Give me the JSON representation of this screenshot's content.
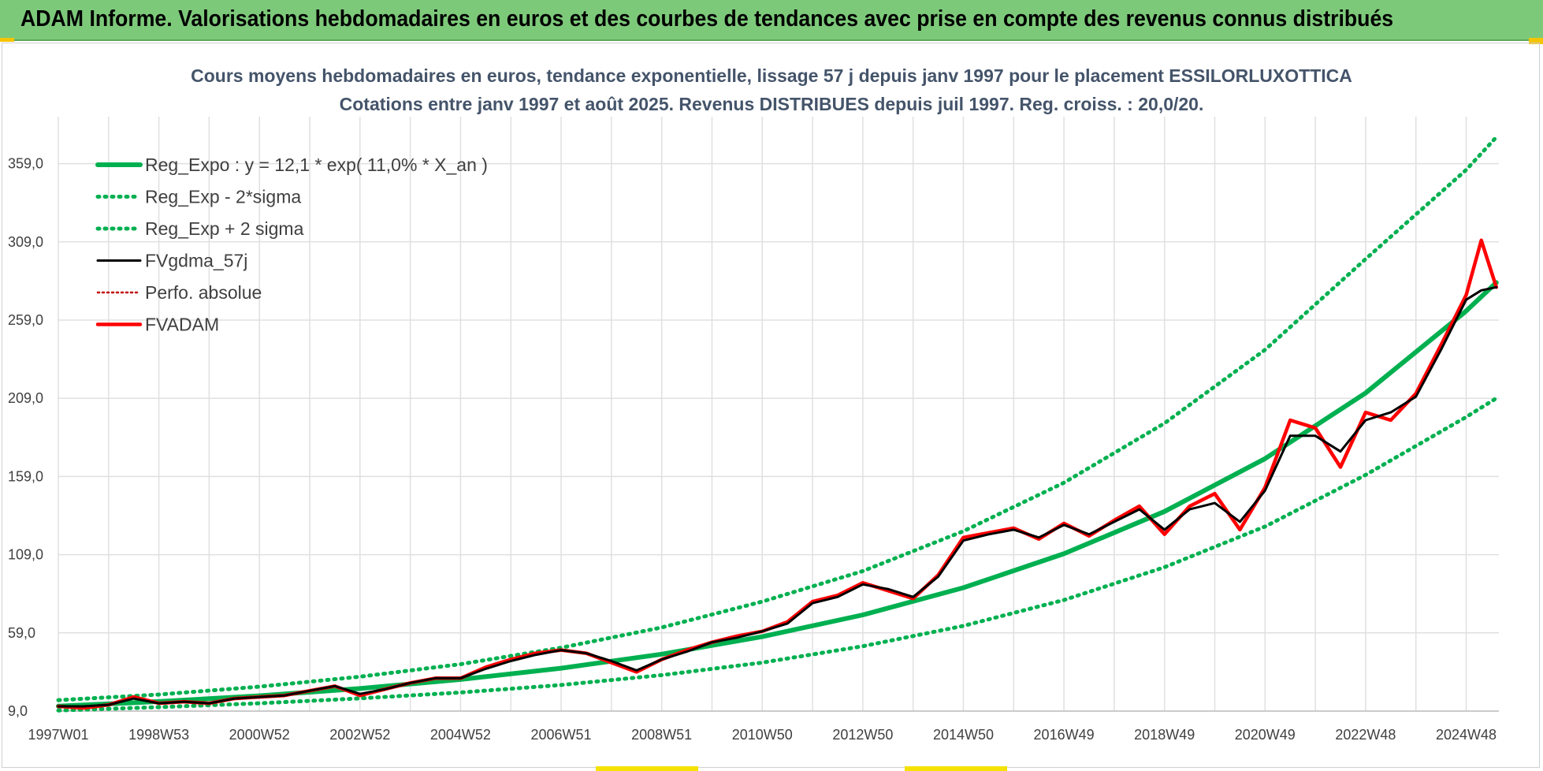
{
  "header": {
    "banner": "ADAM Informe. Valorisations hebdomadaires en euros et des courbes de tendances avec prise en compte des revenus connus distribués"
  },
  "colors": {
    "banner_bg": "#7dc97a",
    "title": "#44546a",
    "reg_green": "#00b050",
    "fvadam_red": "#ff0000",
    "perfo_red": "#c00000",
    "gdma_black": "#000000",
    "grid": "#e0e0e0"
  },
  "chart_data": {
    "type": "line",
    "title": "Cours moyens hebdomadaires en euros, tendance exponentielle, lissage 57 j depuis janv 1997 pour le placement ESSILORLUXOTTICA",
    "subtitle": "Cotations entre janv 1997 et août 2025.  Revenus DISTRIBUES depuis juil 1997.  Reg. croiss. : 20,0/20.",
    "xlabel": "",
    "ylabel": "",
    "x_unit": "year",
    "xlim": [
      1997.0,
      2025.65
    ],
    "ylim": [
      9,
      384
    ],
    "y_ticks": [
      9,
      59,
      109,
      159,
      209,
      259,
      309,
      359
    ],
    "y_tick_labels": [
      "9,0",
      "59,0",
      "109,0",
      "159,0",
      "209,0",
      "259,0",
      "309,0",
      "359,0"
    ],
    "x_ticks": [
      1997.0,
      1999.0,
      2001.0,
      2003.0,
      2005.0,
      2007.0,
      2009.0,
      2011.0,
      2013.0,
      2015.0,
      2017.0,
      2019.0,
      2021.0,
      2023.0,
      2025.0
    ],
    "x_tick_labels": [
      "1997W01",
      "1998W53",
      "2000W52",
      "2002W52",
      "2004W52",
      "2006W51",
      "2008W51",
      "2010W50",
      "2012W50",
      "2014W50",
      "2016W49",
      "2018W49",
      "2020W49",
      "2022W48",
      "2024W48"
    ],
    "grid": true,
    "legend_position": "top-left",
    "legend": [
      {
        "label": "Reg_Expo : y = 12,1 * exp( 11,0% *  X_an )",
        "color": "#00b050",
        "style": "solid"
      },
      {
        "label": "Reg_Exp - 2*sigma",
        "color": "#00b050",
        "style": "dotted"
      },
      {
        "label": "Reg_Exp + 2 sigma",
        "color": "#00b050",
        "style": "dotted"
      },
      {
        "label": "FVgdma_57j",
        "color": "#000000",
        "style": "solid"
      },
      {
        "label": "Perfo. absolue",
        "color": "#c00000",
        "style": "dotted"
      },
      {
        "label": "FVADAM",
        "color": "#ff0000",
        "style": "solid"
      }
    ],
    "series": [
      {
        "name": "Reg_Expo : y = 12,1 * exp( 11,0% *  X_an )",
        "x": [
          1997.0,
          1999.0,
          2001.0,
          2003.0,
          2005.0,
          2007.0,
          2009.0,
          2011.0,
          2013.0,
          2015.0,
          2017.0,
          2019.0,
          2021.0,
          2023.0,
          2025.0,
          2025.6
        ],
        "values": [
          12.1,
          15.1,
          18.8,
          23.4,
          29.2,
          36.4,
          45.4,
          56.6,
          70.5,
          87.9,
          109.6,
          136.6,
          170.4,
          212.4,
          264.8,
          283.0
        ]
      },
      {
        "name": "Reg_Exp - 2*sigma",
        "x": [
          1997.0,
          1999.0,
          2001.0,
          2003.0,
          2005.0,
          2007.0,
          2009.0,
          2011.0,
          2013.0,
          2015.0,
          2017.0,
          2019.0,
          2021.0,
          2023.0,
          2025.0,
          2025.6
        ],
        "values": [
          9.4,
          11.5,
          14.0,
          17.1,
          20.9,
          25.7,
          32.0,
          40.0,
          50.5,
          63.5,
          80.0,
          101.0,
          127.0,
          160.0,
          197.0,
          209.0
        ]
      },
      {
        "name": "Reg_Exp + 2 sigma",
        "x": [
          1997.0,
          1999.0,
          2001.0,
          2003.0,
          2005.0,
          2007.0,
          2009.0,
          2011.0,
          2013.0,
          2015.0,
          2017.0,
          2019.0,
          2021.0,
          2023.0,
          2025.0,
          2025.6
        ],
        "values": [
          16.0,
          19.6,
          24.6,
          31.0,
          39.0,
          49.5,
          62.5,
          79.0,
          98.5,
          124.0,
          155.0,
          193.0,
          240.0,
          298.0,
          355.0,
          376.0
        ]
      },
      {
        "name": "FVgdma_57j",
        "x": [
          1997.0,
          1997.5,
          1998.0,
          1998.5,
          1999.0,
          1999.5,
          2000.0,
          2000.5,
          2001.0,
          2001.5,
          2002.0,
          2002.5,
          2003.0,
          2003.5,
          2004.0,
          2004.5,
          2005.0,
          2005.5,
          2006.0,
          2006.5,
          2007.0,
          2007.5,
          2008.0,
          2008.5,
          2009.0,
          2009.5,
          2010.0,
          2010.5,
          2011.0,
          2011.5,
          2012.0,
          2012.5,
          2013.0,
          2013.5,
          2014.0,
          2014.5,
          2015.0,
          2015.5,
          2016.0,
          2016.5,
          2017.0,
          2017.5,
          2018.0,
          2018.5,
          2019.0,
          2019.5,
          2020.0,
          2020.5,
          2021.0,
          2021.5,
          2022.0,
          2022.5,
          2023.0,
          2023.5,
          2024.0,
          2024.5,
          2025.0,
          2025.3,
          2025.6
        ],
        "values": [
          12,
          12,
          13,
          17,
          14,
          15,
          14,
          17,
          18,
          19,
          22,
          25,
          20,
          23,
          27,
          30,
          30,
          36,
          41,
          45,
          48,
          46,
          41,
          35,
          42,
          47,
          53,
          56,
          60,
          65,
          78,
          82,
          90,
          87,
          82,
          95,
          118,
          122,
          125,
          120,
          128,
          122,
          130,
          138,
          125,
          138,
          142,
          130,
          150,
          185,
          185,
          175,
          195,
          200,
          210,
          240,
          272,
          278,
          280
        ]
      },
      {
        "name": "Perfo. absolue",
        "x": [
          1997.0,
          1997.5,
          1998.0,
          1998.5,
          1999.0,
          1999.5,
          2000.0,
          2000.5,
          2001.0,
          2001.5,
          2002.0,
          2002.5,
          2003.0,
          2003.5,
          2004.0,
          2004.5,
          2005.0,
          2005.5,
          2006.0,
          2006.5,
          2007.0,
          2007.5,
          2008.0,
          2008.5,
          2009.0,
          2009.5,
          2010.0,
          2010.5,
          2011.0,
          2011.5,
          2012.0,
          2012.5,
          2013.0,
          2013.5,
          2014.0,
          2014.5,
          2015.0,
          2015.5,
          2016.0,
          2016.5,
          2017.0,
          2017.5,
          2018.0,
          2018.5,
          2019.0,
          2019.5,
          2020.0,
          2020.5,
          2021.0,
          2021.5,
          2022.0,
          2022.5,
          2023.0,
          2023.5,
          2024.0,
          2024.5,
          2025.0,
          2025.3,
          2025.6
        ],
        "values": [
          12,
          11,
          13,
          18,
          14,
          15,
          14,
          17,
          18,
          19,
          22,
          25,
          19,
          23,
          27,
          30,
          30,
          37,
          42,
          46,
          48,
          46,
          40,
          34,
          42,
          48,
          53,
          57,
          60,
          66,
          79,
          83,
          91,
          86,
          81,
          96,
          120,
          123,
          126,
          119,
          129,
          121,
          131,
          140,
          122,
          140,
          148,
          125,
          152,
          195,
          190,
          165,
          200,
          195,
          212,
          243,
          275,
          310,
          280
        ]
      },
      {
        "name": "FVADAM",
        "x": [
          1997.0,
          1997.5,
          1998.0,
          1998.5,
          1999.0,
          1999.5,
          2000.0,
          2000.5,
          2001.0,
          2001.5,
          2002.0,
          2002.5,
          2003.0,
          2003.5,
          2004.0,
          2004.5,
          2005.0,
          2005.5,
          2006.0,
          2006.5,
          2007.0,
          2007.5,
          2008.0,
          2008.5,
          2009.0,
          2009.5,
          2010.0,
          2010.5,
          2011.0,
          2011.5,
          2012.0,
          2012.5,
          2013.0,
          2013.5,
          2014.0,
          2014.5,
          2015.0,
          2015.5,
          2016.0,
          2016.5,
          2017.0,
          2017.5,
          2018.0,
          2018.5,
          2019.0,
          2019.5,
          2020.0,
          2020.5,
          2021.0,
          2021.5,
          2022.0,
          2022.5,
          2023.0,
          2023.5,
          2024.0,
          2024.5,
          2025.0,
          2025.3,
          2025.6
        ],
        "values": [
          12,
          11,
          13,
          18,
          14,
          15,
          14,
          17,
          18,
          19,
          22,
          25,
          19,
          23,
          27,
          30,
          30,
          37,
          42,
          46,
          48,
          46,
          40,
          34,
          42,
          48,
          53,
          57,
          60,
          66,
          79,
          83,
          91,
          86,
          81,
          96,
          120,
          123,
          126,
          119,
          129,
          121,
          131,
          140,
          122,
          140,
          148,
          125,
          152,
          195,
          190,
          165,
          200,
          195,
          212,
          243,
          275,
          310,
          280
        ]
      }
    ]
  }
}
